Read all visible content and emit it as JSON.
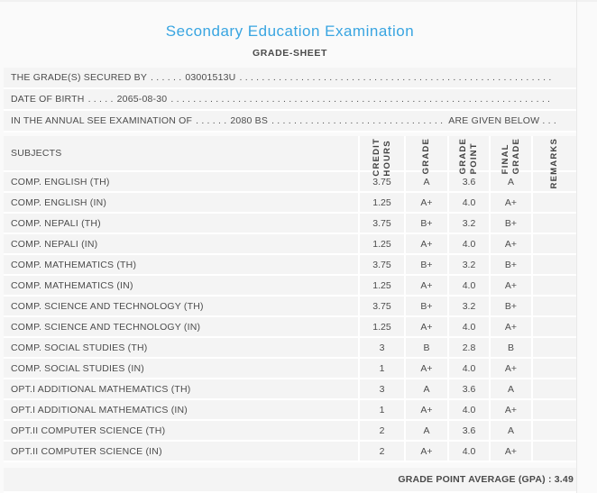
{
  "header": {
    "title": "Secondary Education Examination",
    "subtitle": "GRADE-SHEET"
  },
  "dot_fill": ". . . . . . . . . . . . . . . . . . . . . . . . . . . . . . . . . . . . . . . . . . . . . . . . . . . . . . . . . . . . . . . . . . . . . . . . . . . . . . . .",
  "info_lines": [
    {
      "label": "THE GRADE(S) SECURED BY",
      "leader": ". . . . . .",
      "value": "03001513U",
      "suffix": ""
    },
    {
      "label": "DATE OF BIRTH",
      "leader": ". . . . .",
      "value": "2065-08-30",
      "suffix": ""
    },
    {
      "label": "IN THE ANNUAL SEE EXAMINATION OF",
      "leader": ". . . . . .",
      "value": "2080 BS",
      "suffix": "ARE GIVEN BELOW . . ."
    }
  ],
  "table": {
    "subjects_header": "SUBJECTS",
    "columns": [
      {
        "label": "CREDIT\nHOURS"
      },
      {
        "label": "GRADE"
      },
      {
        "label": "GRADE\nPOINT"
      },
      {
        "label": "FINAL\nGRADE"
      },
      {
        "label": "REMARKS"
      }
    ],
    "rows": [
      {
        "subject": "COMP. ENGLISH (TH)",
        "credit_hours": "3.75",
        "grade": "A",
        "grade_point": "3.6",
        "final_grade": "A",
        "remarks": ""
      },
      {
        "subject": "COMP. ENGLISH (IN)",
        "credit_hours": "1.25",
        "grade": "A+",
        "grade_point": "4.0",
        "final_grade": "A+",
        "remarks": ""
      },
      {
        "subject": "COMP. NEPALI (TH)",
        "credit_hours": "3.75",
        "grade": "B+",
        "grade_point": "3.2",
        "final_grade": "B+",
        "remarks": ""
      },
      {
        "subject": "COMP. NEPALI (IN)",
        "credit_hours": "1.25",
        "grade": "A+",
        "grade_point": "4.0",
        "final_grade": "A+",
        "remarks": ""
      },
      {
        "subject": "COMP. MATHEMATICS (TH)",
        "credit_hours": "3.75",
        "grade": "B+",
        "grade_point": "3.2",
        "final_grade": "B+",
        "remarks": ""
      },
      {
        "subject": "COMP. MATHEMATICS (IN)",
        "credit_hours": "1.25",
        "grade": "A+",
        "grade_point": "4.0",
        "final_grade": "A+",
        "remarks": ""
      },
      {
        "subject": "COMP. SCIENCE AND TECHNOLOGY (TH)",
        "credit_hours": "3.75",
        "grade": "B+",
        "grade_point": "3.2",
        "final_grade": "B+",
        "remarks": ""
      },
      {
        "subject": "COMP. SCIENCE AND TECHNOLOGY (IN)",
        "credit_hours": "1.25",
        "grade": "A+",
        "grade_point": "4.0",
        "final_grade": "A+",
        "remarks": ""
      },
      {
        "subject": "COMP. SOCIAL STUDIES (TH)",
        "credit_hours": "3",
        "grade": "B",
        "grade_point": "2.8",
        "final_grade": "B",
        "remarks": ""
      },
      {
        "subject": "COMP. SOCIAL STUDIES (IN)",
        "credit_hours": "1",
        "grade": "A+",
        "grade_point": "4.0",
        "final_grade": "A+",
        "remarks": ""
      },
      {
        "subject": "OPT.I ADDITIONAL MATHEMATICS (TH)",
        "credit_hours": "3",
        "grade": "A",
        "grade_point": "3.6",
        "final_grade": "A",
        "remarks": ""
      },
      {
        "subject": "OPT.I ADDITIONAL MATHEMATICS (IN)",
        "credit_hours": "1",
        "grade": "A+",
        "grade_point": "4.0",
        "final_grade": "A+",
        "remarks": ""
      },
      {
        "subject": "OPT.II COMPUTER SCIENCE (TH)",
        "credit_hours": "2",
        "grade": "A",
        "grade_point": "3.6",
        "final_grade": "A",
        "remarks": ""
      },
      {
        "subject": "OPT.II COMPUTER SCIENCE (IN)",
        "credit_hours": "2",
        "grade": "A+",
        "grade_point": "4.0",
        "final_grade": "A+",
        "remarks": ""
      }
    ]
  },
  "footer": {
    "gpa_text": "GRADE POINT AVERAGE (GPA) : 3.49"
  },
  "colors": {
    "title_blue": "#39a5e1",
    "body_text": "#4c4c4c",
    "row_background": "#f4f4f4",
    "page_background": "#fafafa",
    "separator_white": "#ffffff"
  }
}
